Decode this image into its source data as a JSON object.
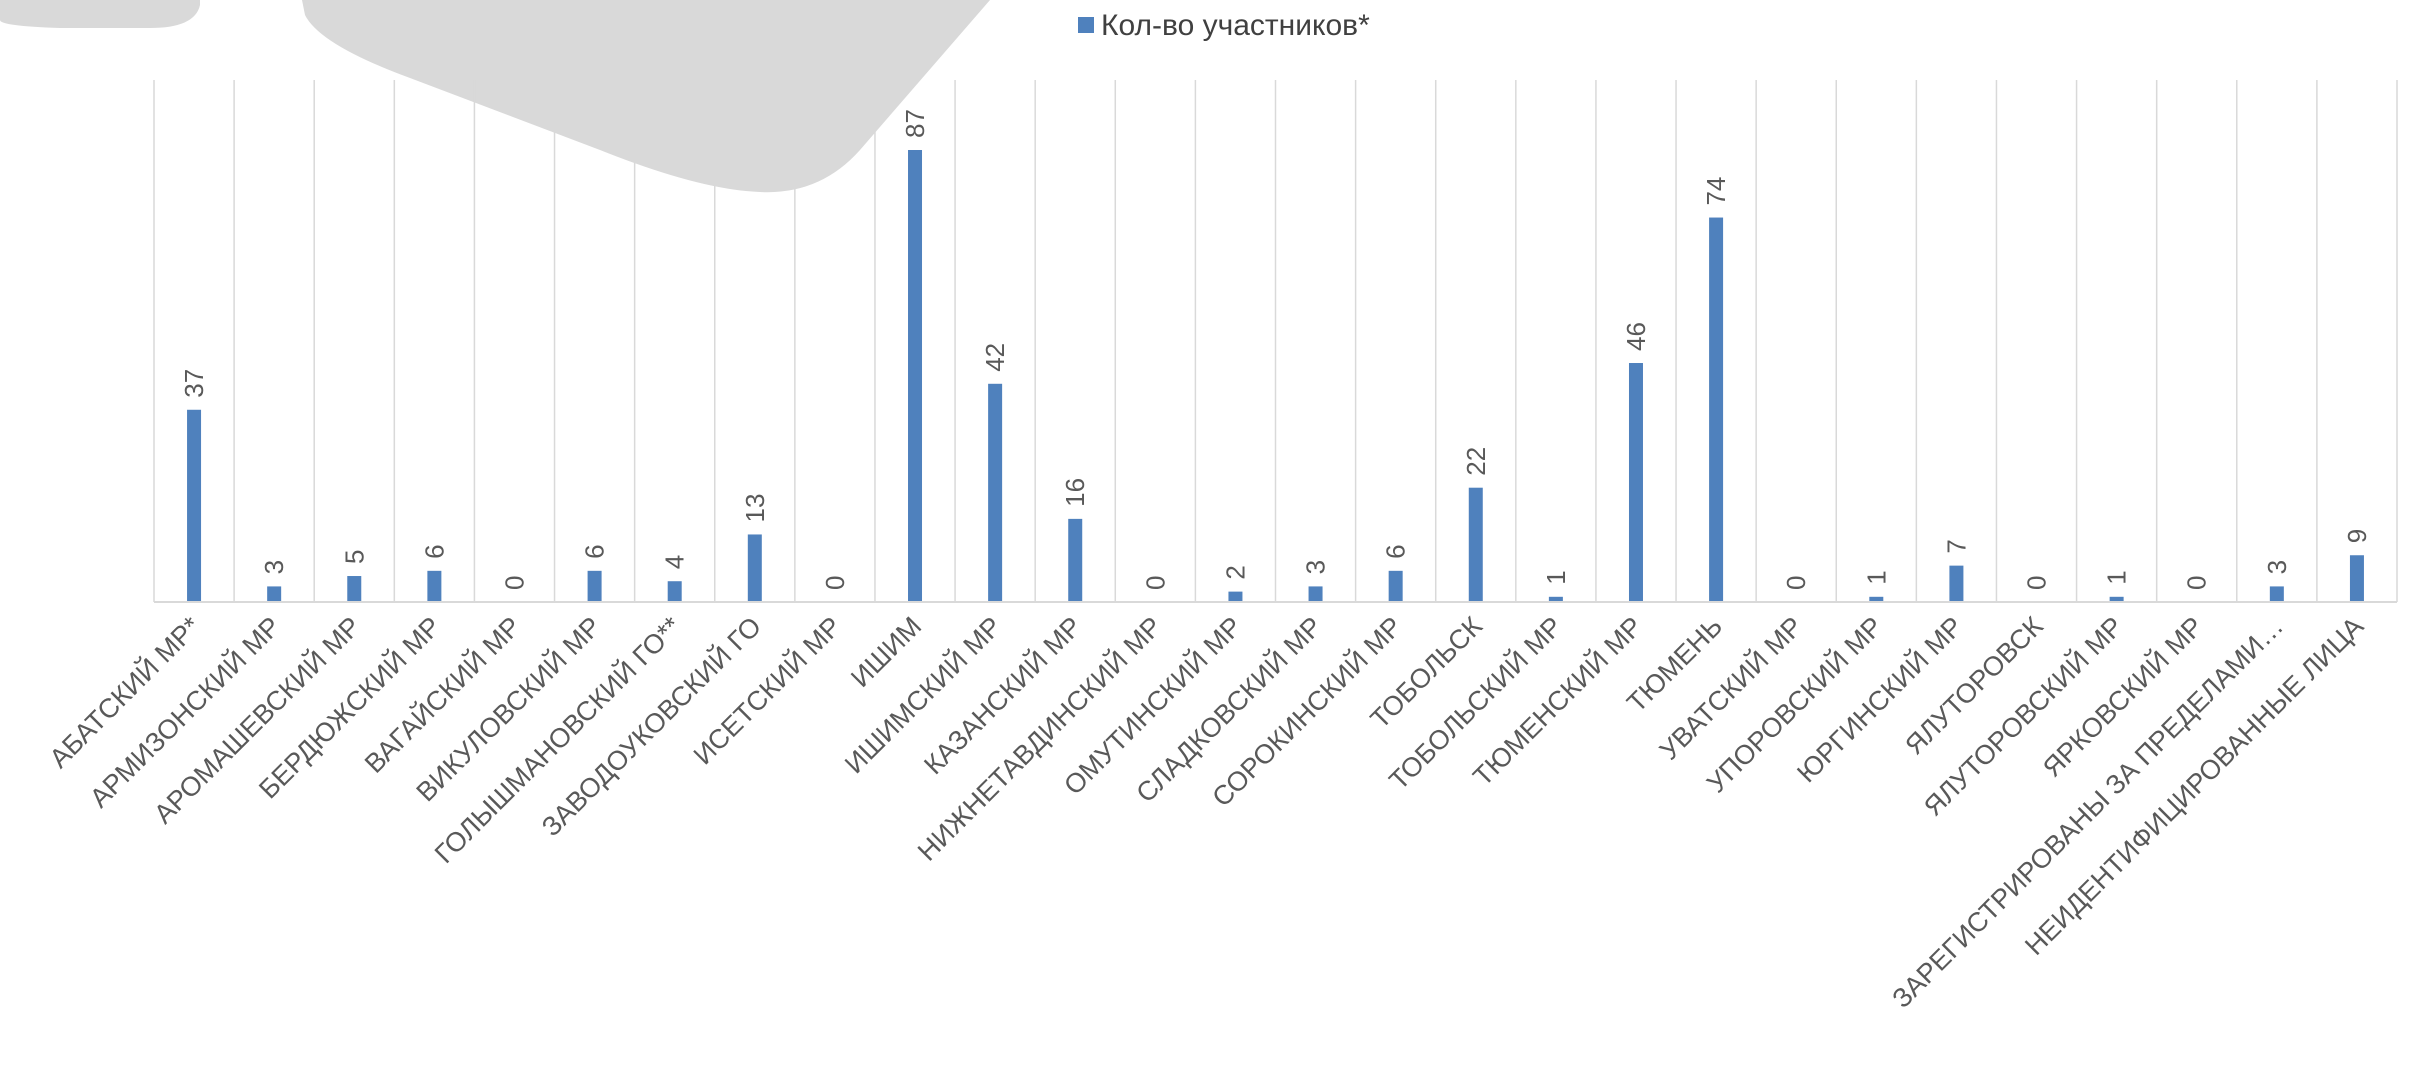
{
  "chart_data": {
    "type": "bar",
    "legend": {
      "position": "top",
      "entries": [
        "Кол-во участников*"
      ]
    },
    "series": [
      {
        "name": "Кол-во участников*",
        "color": "#4F81BD",
        "values": [
          37,
          3,
          5,
          6,
          0,
          6,
          4,
          13,
          0,
          87,
          42,
          16,
          0,
          2,
          3,
          6,
          22,
          1,
          46,
          74,
          0,
          1,
          7,
          0,
          1,
          0,
          3,
          9
        ]
      }
    ],
    "categories": [
      "АБАТСКИЙ МР*",
      "АРМИЗОНСКИЙ МР",
      "АРОМАШЕВСКИЙ МР",
      "БЕРДЮЖСКИЙ МР",
      "ВАГАЙСКИЙ МР",
      "ВИКУЛОВСКИЙ МР",
      "ГОЛЫШМАНОВСКИЙ ГО**",
      "ЗАВОДОУКОВСКИЙ ГО",
      "ИСЕТСКИЙ МР",
      "ИШИМ",
      "ИШИМСКИЙ МР",
      "КАЗАНСКИЙ МР",
      "НИЖНЕТАВДИНСКИЙ МР",
      "ОМУТИНСКИЙ МР",
      "СЛАДКОВСКИЙ МР",
      "СОРОКИНСКИЙ МР",
      "ТОБОЛЬСК",
      "ТОБОЛЬСКИЙ МР",
      "ТЮМЕНСКИЙ МР",
      "ТЮМЕНЬ",
      "УВАТСКИЙ МР",
      "УПОРОВСКИЙ МР",
      "ЮРГИНСКИЙ МР",
      "ЯЛУТОРОВСК",
      "ЯЛУТОРОВСКИЙ МР",
      "ЯРКОВСКИЙ МР",
      "ЗАРЕГИСТРИРОВАНЫ ЗА ПРЕДЕЛАМИ…",
      "НЕИДЕНТИФИЦИРОВАННЫЕ ЛИЦА"
    ],
    "ylim": [
      0,
      100
    ],
    "grid": {
      "vertical_category_lines": true,
      "horizontal": false
    },
    "data_labels": true,
    "colors": {
      "bar": "#4F81BD",
      "grid": "#D9D9D9",
      "axis": "#D9D9D9",
      "text": "#595959",
      "decor": "#D9D9D9"
    }
  }
}
